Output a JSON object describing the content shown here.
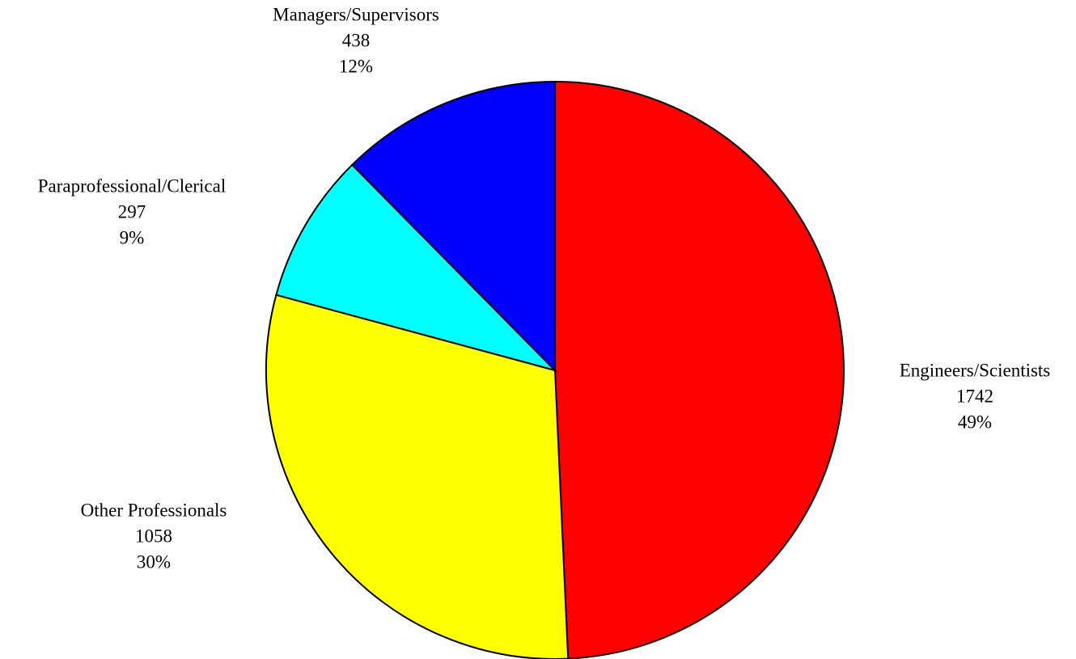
{
  "chart_data": {
    "type": "pie",
    "categories": [
      "Engineers/Scientists",
      "Other Professionals",
      "Paraprofessional/Clerical",
      "Managers/Supervisors"
    ],
    "values": [
      1742,
      1058,
      297,
      438
    ],
    "percent_labels": [
      "49%",
      "30%",
      "9%",
      "12%"
    ],
    "colors": [
      "#ff0000",
      "#ffff00",
      "#00ffff",
      "#0000ff"
    ]
  }
}
